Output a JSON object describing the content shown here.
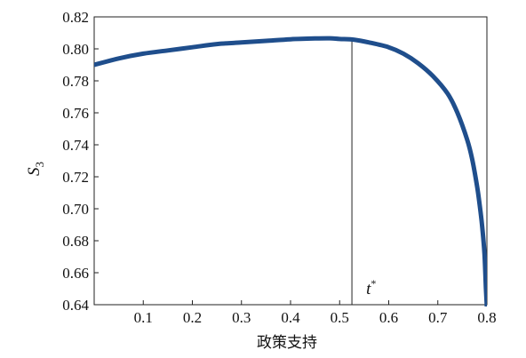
{
  "chart_data": {
    "type": "line",
    "xlabel": "政策支持",
    "ylabel": {
      "main": "S",
      "subscript": "3"
    },
    "xlim": [
      0.0,
      0.8
    ],
    "ylim": [
      0.64,
      0.82
    ],
    "x_ticks": [
      {
        "value": 0.1,
        "label": "0.1"
      },
      {
        "value": 0.2,
        "label": "0.2"
      },
      {
        "value": 0.3,
        "label": "0.3"
      },
      {
        "value": 0.4,
        "label": "0.4"
      },
      {
        "value": 0.5,
        "label": "0.5"
      },
      {
        "value": 0.6,
        "label": "0.6"
      },
      {
        "value": 0.7,
        "label": "0.7"
      },
      {
        "value": 0.8,
        "label": "0.8"
      }
    ],
    "y_ticks": [
      {
        "value": 0.64,
        "label": "0.64"
      },
      {
        "value": 0.66,
        "label": "0.66"
      },
      {
        "value": 0.68,
        "label": "0.68"
      },
      {
        "value": 0.7,
        "label": "0.70"
      },
      {
        "value": 0.72,
        "label": "0.72"
      },
      {
        "value": 0.74,
        "label": "0.74"
      },
      {
        "value": 0.76,
        "label": "0.76"
      },
      {
        "value": 0.78,
        "label": "0.78"
      },
      {
        "value": 0.8,
        "label": "0.80"
      },
      {
        "value": 0.82,
        "label": "0.82"
      }
    ],
    "grid": false,
    "series": [
      {
        "color": "#1f4e8c",
        "points": [
          [
            0.0,
            0.79
          ],
          [
            0.05,
            0.794
          ],
          [
            0.1,
            0.797
          ],
          [
            0.15,
            0.799
          ],
          [
            0.2,
            0.801
          ],
          [
            0.25,
            0.803
          ],
          [
            0.3,
            0.804
          ],
          [
            0.35,
            0.805
          ],
          [
            0.4,
            0.806
          ],
          [
            0.45,
            0.8065
          ],
          [
            0.48,
            0.8066
          ],
          [
            0.5,
            0.8062
          ],
          [
            0.53,
            0.8057
          ],
          [
            0.56,
            0.804
          ],
          [
            0.6,
            0.801
          ],
          [
            0.63,
            0.797
          ],
          [
            0.66,
            0.791
          ],
          [
            0.69,
            0.783
          ],
          [
            0.72,
            0.772
          ],
          [
            0.74,
            0.76
          ],
          [
            0.76,
            0.743
          ],
          [
            0.77,
            0.731
          ],
          [
            0.78,
            0.714
          ],
          [
            0.785,
            0.703
          ],
          [
            0.79,
            0.69
          ],
          [
            0.795,
            0.672
          ],
          [
            0.798,
            0.65
          ],
          [
            0.8,
            0.638
          ]
        ]
      }
    ],
    "annotations": [
      {
        "type": "vline",
        "x": 0.525,
        "label": "t",
        "superscript": "*"
      }
    ]
  }
}
